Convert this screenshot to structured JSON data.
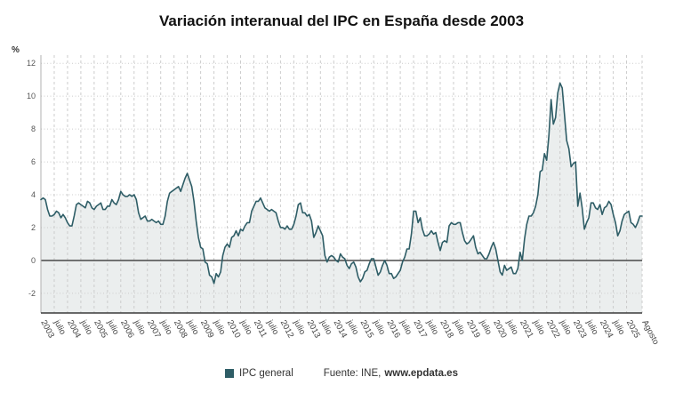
{
  "title": "Variación interanual del IPC en España desde 2003",
  "y_axis_unit": "%",
  "legend": {
    "series_label": "IPC general",
    "source_prefix": "Fuente: INE,",
    "source_site": "www.epdata.es"
  },
  "colors": {
    "line": "#2e5d66",
    "fill": "#e7ebeb",
    "zero_line": "#3a3a3a",
    "axis": "#b0b0b0",
    "grid": "#cccccc",
    "tick_text": "#555555"
  },
  "chart_data": {
    "type": "area",
    "title": "Variación interanual del IPC en España desde 2003",
    "xlabel": "",
    "ylabel": "%",
    "ylim": [
      -2,
      12
    ],
    "yticks": [
      -2,
      0,
      2,
      4,
      6,
      8,
      10,
      12
    ],
    "grid": "on",
    "legend_position": "bottom",
    "x_start": "2003-01",
    "x_end": "2025-08",
    "x_ticks": [
      [
        0,
        "2003"
      ],
      [
        6,
        "julio"
      ],
      [
        12,
        "2004"
      ],
      [
        18,
        "julio"
      ],
      [
        24,
        "2005"
      ],
      [
        30,
        "julio"
      ],
      [
        36,
        "2006"
      ],
      [
        42,
        "julio"
      ],
      [
        48,
        "2007"
      ],
      [
        54,
        "julio"
      ],
      [
        60,
        "2008"
      ],
      [
        66,
        "julio"
      ],
      [
        72,
        "2009"
      ],
      [
        78,
        "julio"
      ],
      [
        84,
        "2010"
      ],
      [
        90,
        "julio"
      ],
      [
        96,
        "2011"
      ],
      [
        102,
        "julio"
      ],
      [
        108,
        "2012"
      ],
      [
        114,
        "julio"
      ],
      [
        120,
        "2013"
      ],
      [
        126,
        "julio"
      ],
      [
        132,
        "2014"
      ],
      [
        138,
        "julio"
      ],
      [
        144,
        "2015"
      ],
      [
        150,
        "julio"
      ],
      [
        156,
        "2016"
      ],
      [
        162,
        "julio"
      ],
      [
        168,
        "2017"
      ],
      [
        174,
        "julio"
      ],
      [
        180,
        "2018"
      ],
      [
        186,
        "julio"
      ],
      [
        192,
        "2019"
      ],
      [
        198,
        "julio"
      ],
      [
        204,
        "2020"
      ],
      [
        210,
        "julio"
      ],
      [
        216,
        "2021"
      ],
      [
        222,
        "julio"
      ],
      [
        228,
        "2022"
      ],
      [
        234,
        "julio"
      ],
      [
        240,
        "2023"
      ],
      [
        246,
        "julio"
      ],
      [
        252,
        "2024"
      ],
      [
        258,
        "julio"
      ],
      [
        264,
        "2025"
      ],
      [
        271,
        "Agosto"
      ]
    ],
    "series": [
      {
        "name": "IPC general",
        "values": [
          3.7,
          3.8,
          3.7,
          3.1,
          2.7,
          2.7,
          2.8,
          3.0,
          2.9,
          2.6,
          2.8,
          2.6,
          2.3,
          2.1,
          2.1,
          2.7,
          3.4,
          3.5,
          3.4,
          3.3,
          3.2,
          3.6,
          3.5,
          3.2,
          3.1,
          3.3,
          3.4,
          3.5,
          3.1,
          3.1,
          3.3,
          3.3,
          3.7,
          3.5,
          3.4,
          3.7,
          4.2,
          4.0,
          3.9,
          3.9,
          4.0,
          3.9,
          4.0,
          3.7,
          2.9,
          2.5,
          2.6,
          2.7,
          2.4,
          2.4,
          2.5,
          2.4,
          2.3,
          2.4,
          2.2,
          2.2,
          2.7,
          3.6,
          4.1,
          4.2,
          4.3,
          4.4,
          4.5,
          4.2,
          4.6,
          5.0,
          5.3,
          4.9,
          4.5,
          3.6,
          2.4,
          1.4,
          0.8,
          0.7,
          -0.1,
          -0.2,
          -0.9,
          -1.0,
          -1.4,
          -0.8,
          -1.0,
          -0.7,
          0.3,
          0.8,
          1.0,
          0.8,
          1.4,
          1.5,
          1.8,
          1.5,
          1.9,
          1.8,
          2.1,
          2.3,
          2.3,
          3.0,
          3.3,
          3.6,
          3.6,
          3.8,
          3.5,
          3.2,
          3.1,
          3.0,
          3.1,
          3.0,
          2.9,
          2.4,
          2.0,
          2.0,
          1.9,
          2.1,
          1.9,
          1.9,
          2.2,
          2.7,
          3.4,
          3.5,
          2.9,
          2.9,
          2.7,
          2.8,
          2.4,
          1.4,
          1.7,
          2.1,
          1.8,
          1.5,
          0.3,
          -0.1,
          0.2,
          0.3,
          0.2,
          0.0,
          -0.1,
          0.4,
          0.2,
          0.1,
          -0.3,
          -0.5,
          -0.2,
          -0.1,
          -0.4,
          -1.0,
          -1.3,
          -1.1,
          -0.7,
          -0.6,
          -0.2,
          0.1,
          0.1,
          -0.4,
          -0.9,
          -0.7,
          -0.3,
          0.0,
          -0.3,
          -0.8,
          -0.8,
          -1.1,
          -1.0,
          -0.8,
          -0.6,
          -0.1,
          0.2,
          0.7,
          0.7,
          1.6,
          3.0,
          3.0,
          2.3,
          2.6,
          1.9,
          1.5,
          1.5,
          1.6,
          1.8,
          1.6,
          1.7,
          1.1,
          0.6,
          1.1,
          1.2,
          1.1,
          2.1,
          2.3,
          2.2,
          2.2,
          2.3,
          2.3,
          1.7,
          1.2,
          1.0,
          1.1,
          1.3,
          1.5,
          0.8,
          0.4,
          0.5,
          0.3,
          0.1,
          0.1,
          0.4,
          0.8,
          1.1,
          0.7,
          0.0,
          -0.7,
          -0.9,
          -0.3,
          -0.6,
          -0.5,
          -0.4,
          -0.8,
          -0.8,
          -0.5,
          0.5,
          0.0,
          1.3,
          2.2,
          2.7,
          2.7,
          2.9,
          3.3,
          4.0,
          5.4,
          5.5,
          6.5,
          6.1,
          7.6,
          9.8,
          8.3,
          8.7,
          10.2,
          10.8,
          10.5,
          8.9,
          7.3,
          6.8,
          5.7,
          5.9,
          6.0,
          3.3,
          4.1,
          3.2,
          1.9,
          2.3,
          2.6,
          3.5,
          3.5,
          3.2,
          3.1,
          3.4,
          2.8,
          3.2,
          3.3,
          3.6,
          3.4,
          2.8,
          2.3,
          1.5,
          1.8,
          2.4,
          2.8,
          2.9,
          3.0,
          2.3,
          2.2,
          2.0,
          2.3,
          2.7,
          2.7
        ]
      }
    ]
  }
}
